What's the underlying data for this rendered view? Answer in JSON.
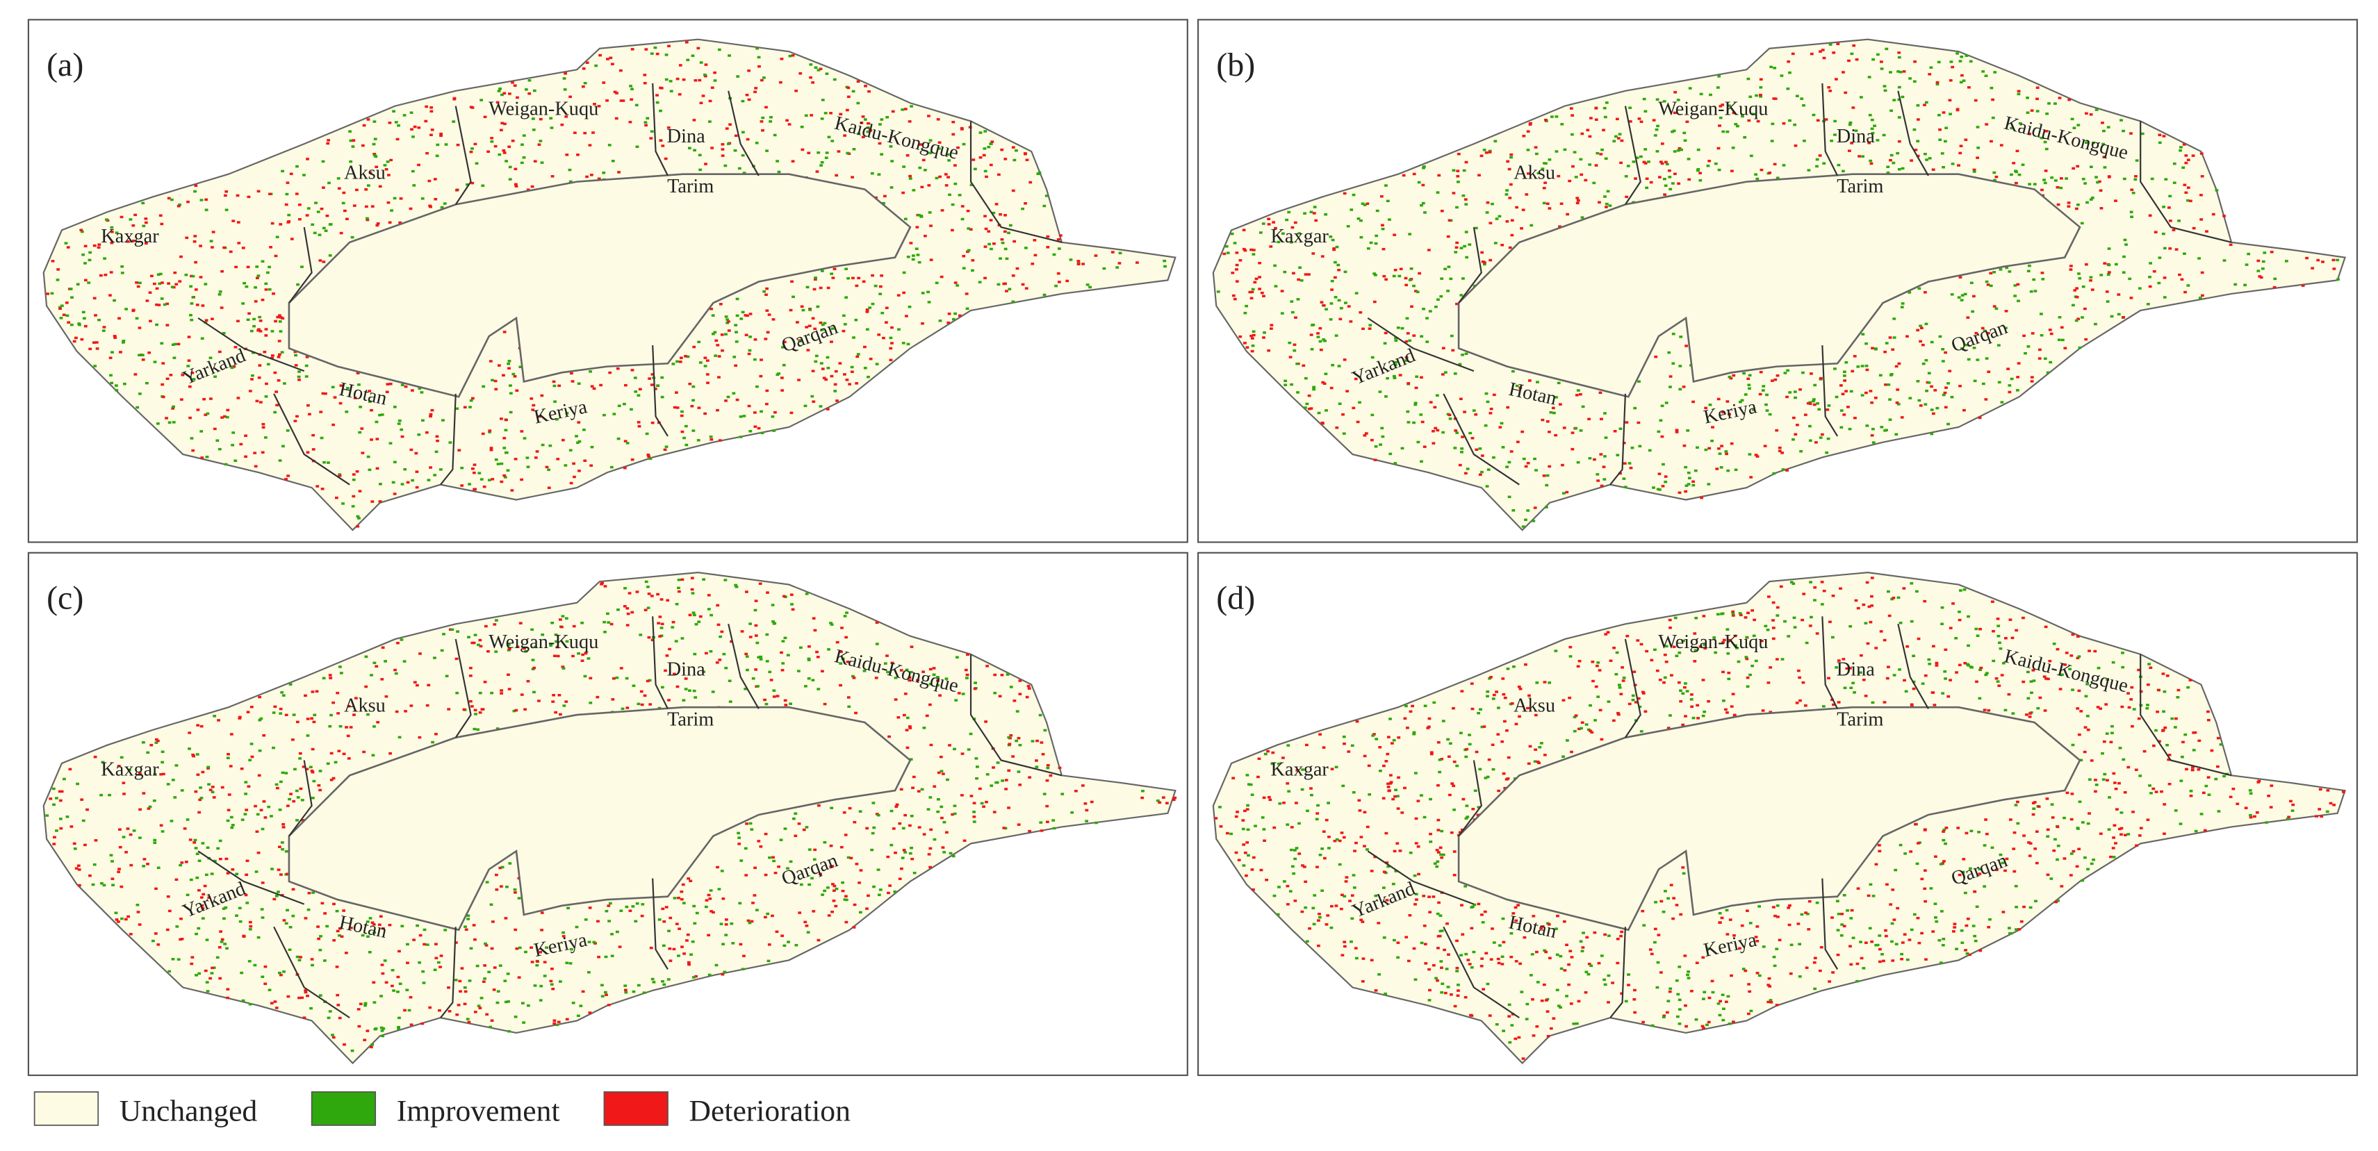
{
  "panels": [
    {
      "label": "(a)"
    },
    {
      "label": "(b)"
    },
    {
      "label": "(c)"
    },
    {
      "label": "(d)"
    }
  ],
  "regions": [
    "Kaxgar",
    "Aksu",
    "Weigan-Kuqu",
    "Dina",
    "Kaidu-Kongque",
    "Tarim",
    "Qarqan",
    "Keriya",
    "Hotan",
    "Yarkand"
  ],
  "legend": [
    {
      "label": "Unchanged",
      "color": "#fdfbe4"
    },
    {
      "label": "Improvement",
      "color": "#2ea80c"
    },
    {
      "label": "Deterioration",
      "color": "#f01818"
    }
  ]
}
